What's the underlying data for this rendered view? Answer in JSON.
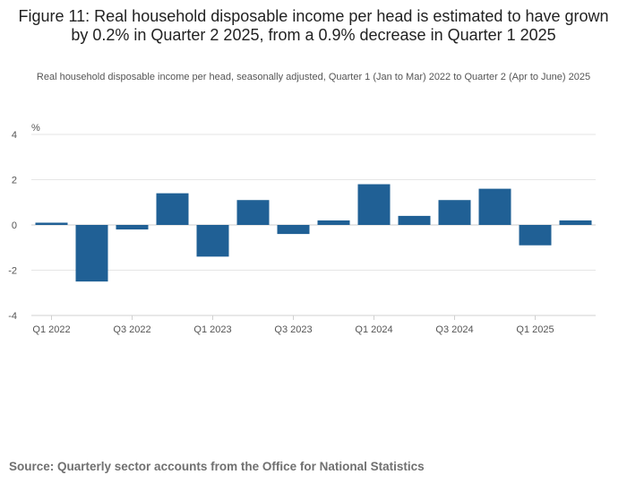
{
  "title": "Figure 11: Real household disposable income per head is estimated to have grown by 0.2% in Quarter 2 2025, from a 0.9% decrease in Quarter 1 2025",
  "subtitle": "Real household disposable income per head, seasonally adjusted, Quarter 1 (Jan to Mar) 2022 to Quarter 2 (Apr to June) 2025",
  "source": "Source: Quarterly sector accounts from the Office for National Statistics",
  "colors": {
    "bar": "#206095",
    "grid": "#e6e6e6",
    "axis": "#d0d0d0",
    "text": "#555555"
  },
  "chart_data": {
    "type": "bar",
    "title": "Figure 11: Real household disposable income per head is estimated to have grown by 0.2% in Quarter 2 2025, from a 0.9% decrease in Quarter 1 2025",
    "ylabel": "%",
    "xlabel": "",
    "ylim": [
      -4,
      4
    ],
    "yticks": [
      4,
      2,
      0,
      -2,
      -4
    ],
    "grid": true,
    "categories": [
      "Q1 2022",
      "Q2 2022",
      "Q3 2022",
      "Q4 2022",
      "Q1 2023",
      "Q2 2023",
      "Q3 2023",
      "Q4 2023",
      "Q1 2024",
      "Q2 2024",
      "Q3 2024",
      "Q4 2024",
      "Q1 2025",
      "Q2 2025"
    ],
    "xtick_labels": [
      "Q1 2022",
      "",
      "Q3 2022",
      "",
      "Q1 2023",
      "",
      "Q3 2023",
      "",
      "Q1 2024",
      "",
      "Q3 2024",
      "",
      "Q1 2025",
      ""
    ],
    "series": [
      {
        "name": "Real household disposable income per head",
        "values": [
          0.1,
          -2.5,
          -0.2,
          1.4,
          -1.4,
          1.1,
          -0.4,
          0.2,
          1.8,
          0.4,
          1.1,
          1.6,
          -0.9,
          0.2
        ]
      }
    ]
  }
}
